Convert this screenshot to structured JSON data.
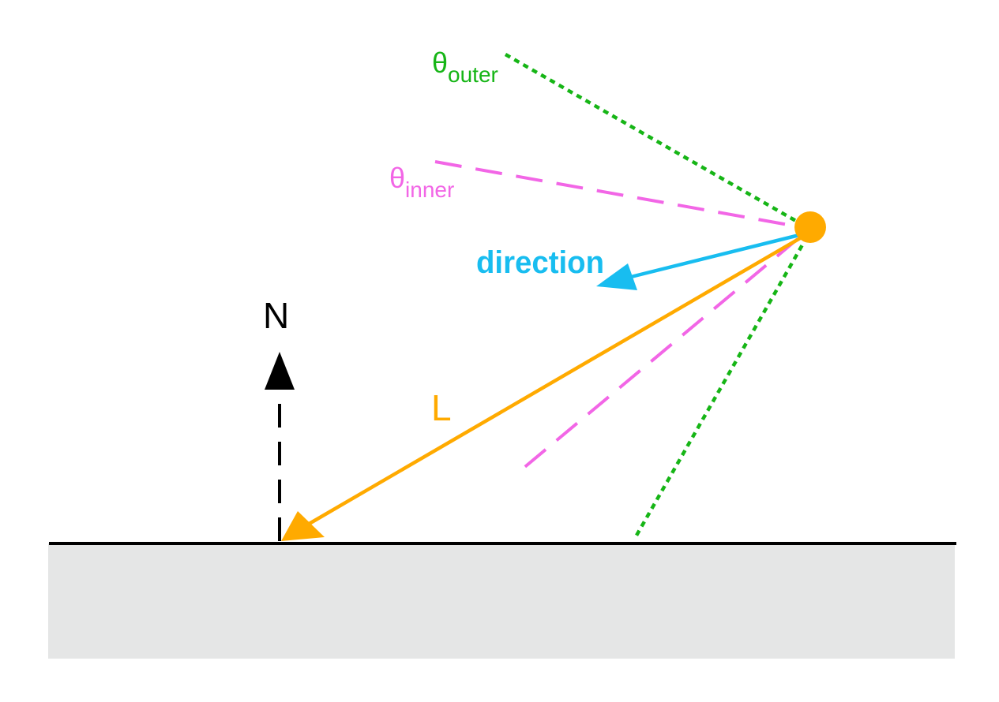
{
  "labels": {
    "theta_outer": {
      "symbol": "θ",
      "subscript": "outer"
    },
    "theta_inner": {
      "symbol": "θ",
      "subscript": "inner"
    },
    "direction": "direction",
    "normal": "N",
    "light_vector": "L"
  },
  "colors": {
    "background": "#ffffff",
    "surface_fill": "#e5e6e6",
    "surface_line": "#000000",
    "outer_cone": "#16b516",
    "inner_cone": "#f266e6",
    "direction": "#18bdf0",
    "light": "#ffaa00",
    "normal": "#000000"
  }
}
